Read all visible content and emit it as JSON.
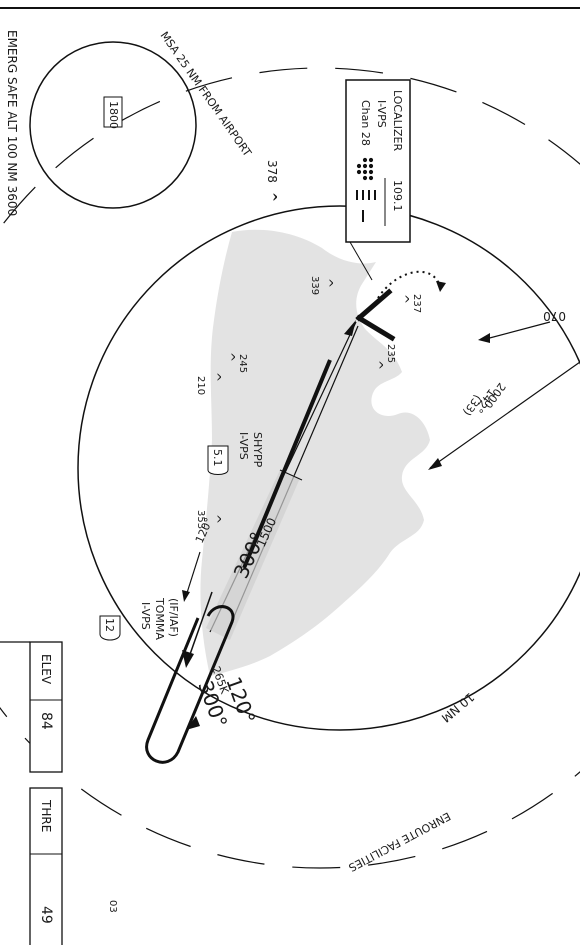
{
  "emerg_safe_alt": "EMERG SAFE ALT 100 NM 3600",
  "msa": {
    "label": "MSA 25 NM FROM AIRPORT",
    "altitude": "1800"
  },
  "localizer": {
    "title": "LOCALIZER",
    "frequency": "109.1",
    "ident": "I-VPS",
    "channel": "Chan 28"
  },
  "ring_label": "10 NM",
  "enroute_label": "ENROUTE FACILITIES",
  "obstacles": [
    "378",
    "339",
    "237",
    "235",
    "245",
    "210",
    "353"
  ],
  "shypp": {
    "name": "SHYPP",
    "ident": "I-VPS",
    "distance": "5.1"
  },
  "tomma": {
    "role": "(IF/IAF)",
    "name": "TOMMA",
    "ident": "I-VPS",
    "distance": "12"
  },
  "courses": {
    "inbound": "300°",
    "outbound": "120°",
    "fix_out": "120°",
    "hold_out": "120°",
    "hold_in": "300°",
    "leg": "265K"
  },
  "altitudes": {
    "final": "1500",
    "feeder": "2000",
    "feeder_course": "142°",
    "feeder_dist": "(33)",
    "fac_70": "070"
  },
  "airport": {
    "elev_label": "ELEV",
    "elev_value": "84",
    "thre_label": "THRE",
    "thre_value": "49"
  },
  "page_ref": "03"
}
